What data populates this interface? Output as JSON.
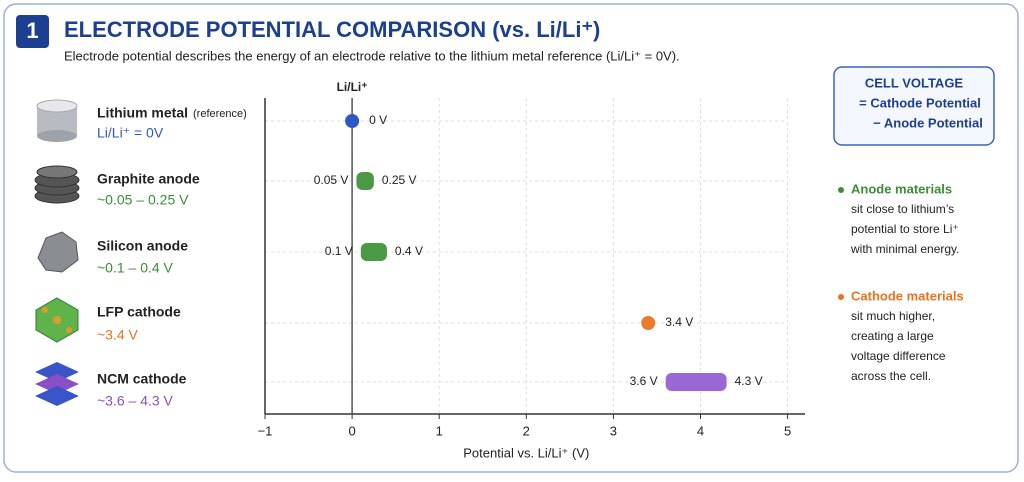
{
  "header": {
    "number": "1",
    "title": "ELECTRODE POTENTIAL COMPARISON (vs. Li/Li⁺)",
    "subtitle": "Electrode potential describes the energy of an electrode relative to the lithium metal reference (Li/Li⁺ = 0V)."
  },
  "materials": [
    {
      "name": "Lithium metal",
      "note": "(reference)",
      "range": "Li/Li⁺ = 0V",
      "color": "#2f56c6"
    },
    {
      "name": "Graphite anode",
      "range": "~0.05 – 0.25 V",
      "color": "#3a8f35"
    },
    {
      "name": "Silicon anode",
      "range": "~0.1 – 0.4 V",
      "color": "#3a8f35"
    },
    {
      "name": "LFP cathode",
      "range": "~3.4 V",
      "color": "#e8731e"
    },
    {
      "name": "NCM cathode",
      "range": "~3.6 – 4.3 V",
      "color": "#8a4fc4"
    }
  ],
  "chart_data": {
    "type": "range",
    "reference_label": "Li/Li⁺",
    "x_label": "Potential vs. Li/Li⁺ (V)",
    "xlim": [
      -1,
      5.2
    ],
    "xticks": [
      {
        "value": -1,
        "label": "−1"
      },
      0,
      1,
      2,
      3,
      4,
      5
    ],
    "grid": true,
    "series": [
      {
        "color": "#2f56c6",
        "values": [
          0
        ],
        "value_labels": [
          "0 V"
        ]
      },
      {
        "color": "#4a9a45",
        "values": [
          0.05,
          0.25
        ],
        "value_labels": [
          "0.05 V",
          "0.25 V"
        ]
      },
      {
        "color": "#4a9a45",
        "values": [
          0.1,
          0.4
        ],
        "value_labels": [
          "0.1 V",
          "0.4 V"
        ]
      },
      {
        "color": "#ec7a2c",
        "values": [
          3.4
        ],
        "value_labels": [
          "3.4 V"
        ]
      },
      {
        "color": "#9a68d4",
        "values": [
          3.6,
          4.3
        ],
        "value_labels": [
          "3.6 V",
          "4.3 V"
        ]
      }
    ]
  },
  "formula": {
    "title": "CELL VOLTAGE",
    "lines": [
      "= Cathode Potential",
      "− Anode Potential"
    ]
  },
  "notes": [
    {
      "heading": "Anode materials",
      "color": "#3a8f35",
      "lines": [
        "sit close to lithium’s",
        "potential to store Li⁺",
        "with minimal energy."
      ]
    },
    {
      "heading": "Cathode materials",
      "color": "#e8731e",
      "lines": [
        "sit much higher,",
        "creating a large",
        "voltage difference",
        "across the cell."
      ]
    }
  ]
}
